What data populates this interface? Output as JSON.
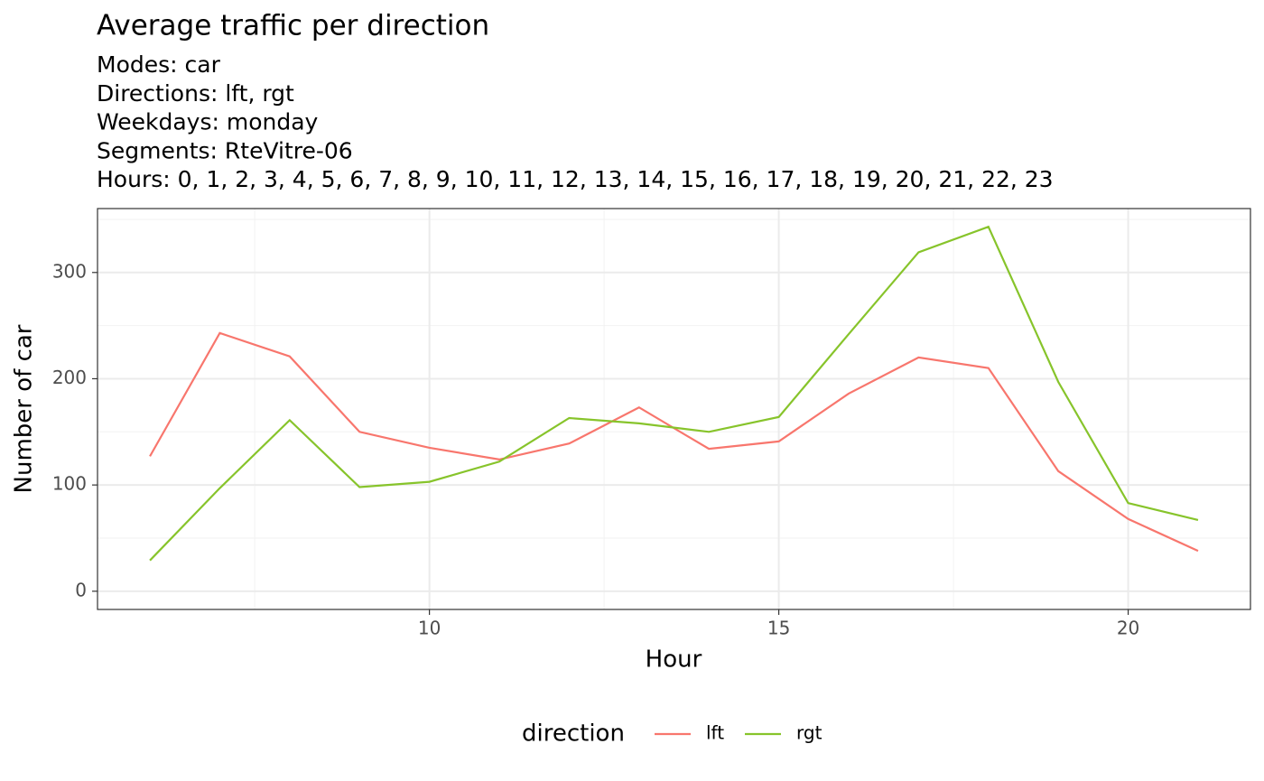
{
  "chart_data": {
    "type": "line",
    "title": "Average traffic per direction",
    "subtitle": [
      "Modes: car",
      "Directions: lft, rgt",
      "Weekdays: monday",
      "Segments: RteVitre-06",
      "Hours: 0, 1, 2, 3, 4, 5, 6, 7, 8, 9, 10, 11, 12, 13, 14, 15, 16, 17, 18, 19, 20, 21, 22, 23"
    ],
    "x_label": "Hour",
    "y_label": "Number of car",
    "x": [
      6,
      7,
      8,
      9,
      10,
      11,
      12,
      13,
      14,
      15,
      16,
      17,
      18,
      19,
      20,
      21
    ],
    "series": [
      {
        "name": "lft",
        "color": "#F8766D",
        "values": [
          127,
          243,
          221,
          150,
          135,
          124,
          139,
          173,
          134,
          141,
          186,
          220,
          210,
          113,
          68,
          38
        ]
      },
      {
        "name": "rgt",
        "color": "#87C42B",
        "values": [
          29,
          97,
          161,
          98,
          103,
          122,
          163,
          158,
          150,
          164,
          242,
          319,
          343,
          197,
          83,
          67
        ]
      }
    ],
    "xlim": [
      5.25,
      21.75
    ],
    "xticks": [
      10,
      15,
      20
    ],
    "xminor": [
      7.5,
      12.5,
      17.5
    ],
    "ylim": [
      -17.15,
      360.15
    ],
    "yticks": [
      0,
      100,
      200,
      300
    ],
    "yminor": [
      50,
      150,
      250,
      350
    ],
    "grid": true,
    "legend_title": "direction",
    "legend_position": "bottom"
  }
}
